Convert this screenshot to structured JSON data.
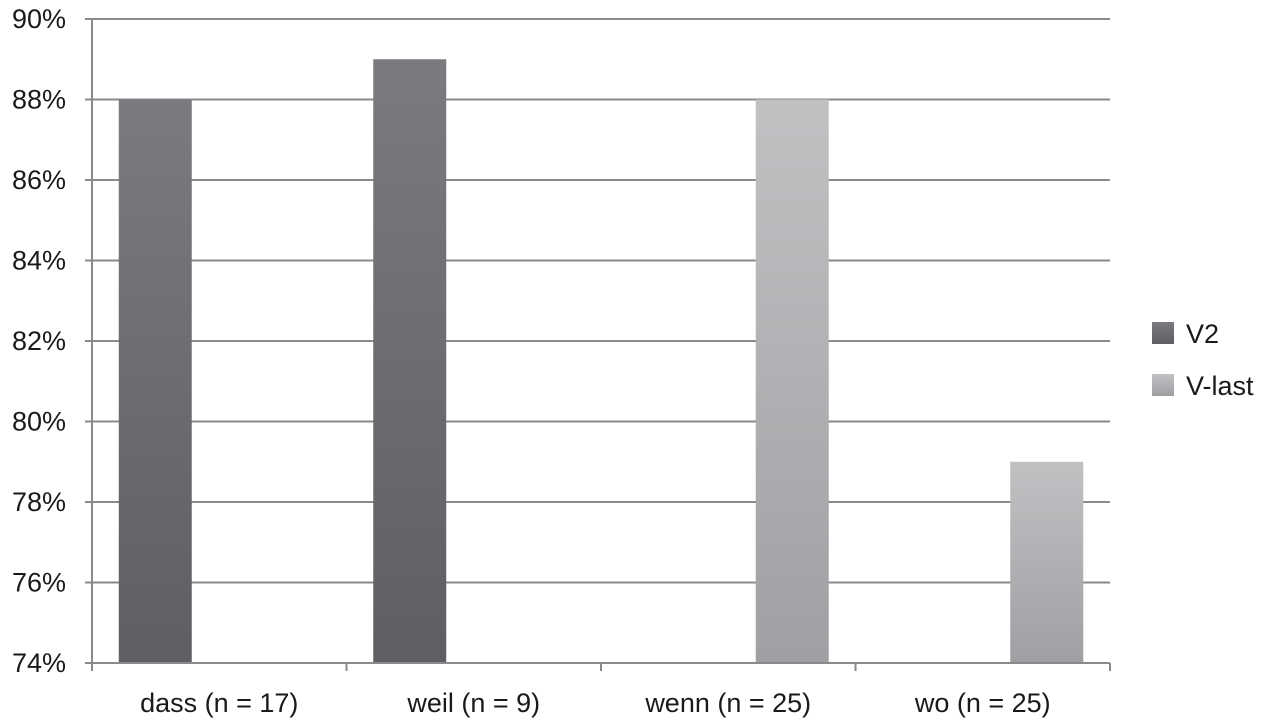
{
  "chart_data": {
    "type": "bar",
    "categories": [
      "dass (n = 17)",
      "weil (n = 9)",
      "wenn (n = 25)",
      "wo (n = 25)"
    ],
    "series": [
      {
        "name": "V2",
        "values": [
          88,
          89,
          null,
          null
        ],
        "color": "#6b6c70"
      },
      {
        "name": "V-last",
        "values": [
          null,
          null,
          88,
          79
        ],
        "color": "#b0b1b4"
      }
    ],
    "y_ticks": [
      "74%",
      "76%",
      "78%",
      "80%",
      "82%",
      "84%",
      "86%",
      "88%",
      "90%"
    ],
    "ylim": [
      74,
      90
    ],
    "y_unit": "%",
    "grid": true,
    "legend_position": "right",
    "title": "",
    "xlabel": "",
    "ylabel": ""
  }
}
